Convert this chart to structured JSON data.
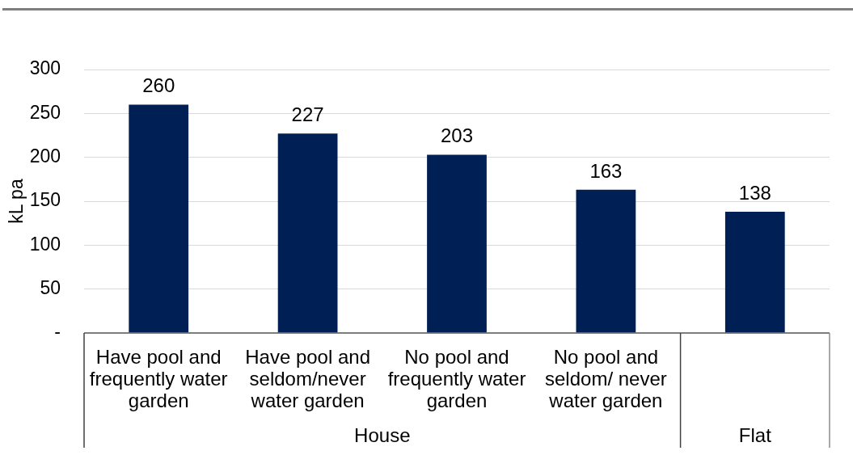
{
  "chart_data": {
    "type": "bar",
    "ylabel": "kL pa",
    "categories": [
      "Have pool and frequently water garden",
      "Have pool and seldom/never water garden",
      "No pool and frequently water garden",
      "No pool and seldom/ never water garden",
      null
    ],
    "values": [
      260,
      227,
      203,
      163,
      138
    ],
    "color": "#001f54",
    "ylim": [
      0,
      300
    ],
    "yticks": [
      {
        "value": 0,
        "label": "-"
      },
      50,
      100,
      150,
      200,
      250,
      300
    ],
    "grid": "y",
    "data_labels": true,
    "annotations": [
      "House",
      "Flat"
    ]
  }
}
